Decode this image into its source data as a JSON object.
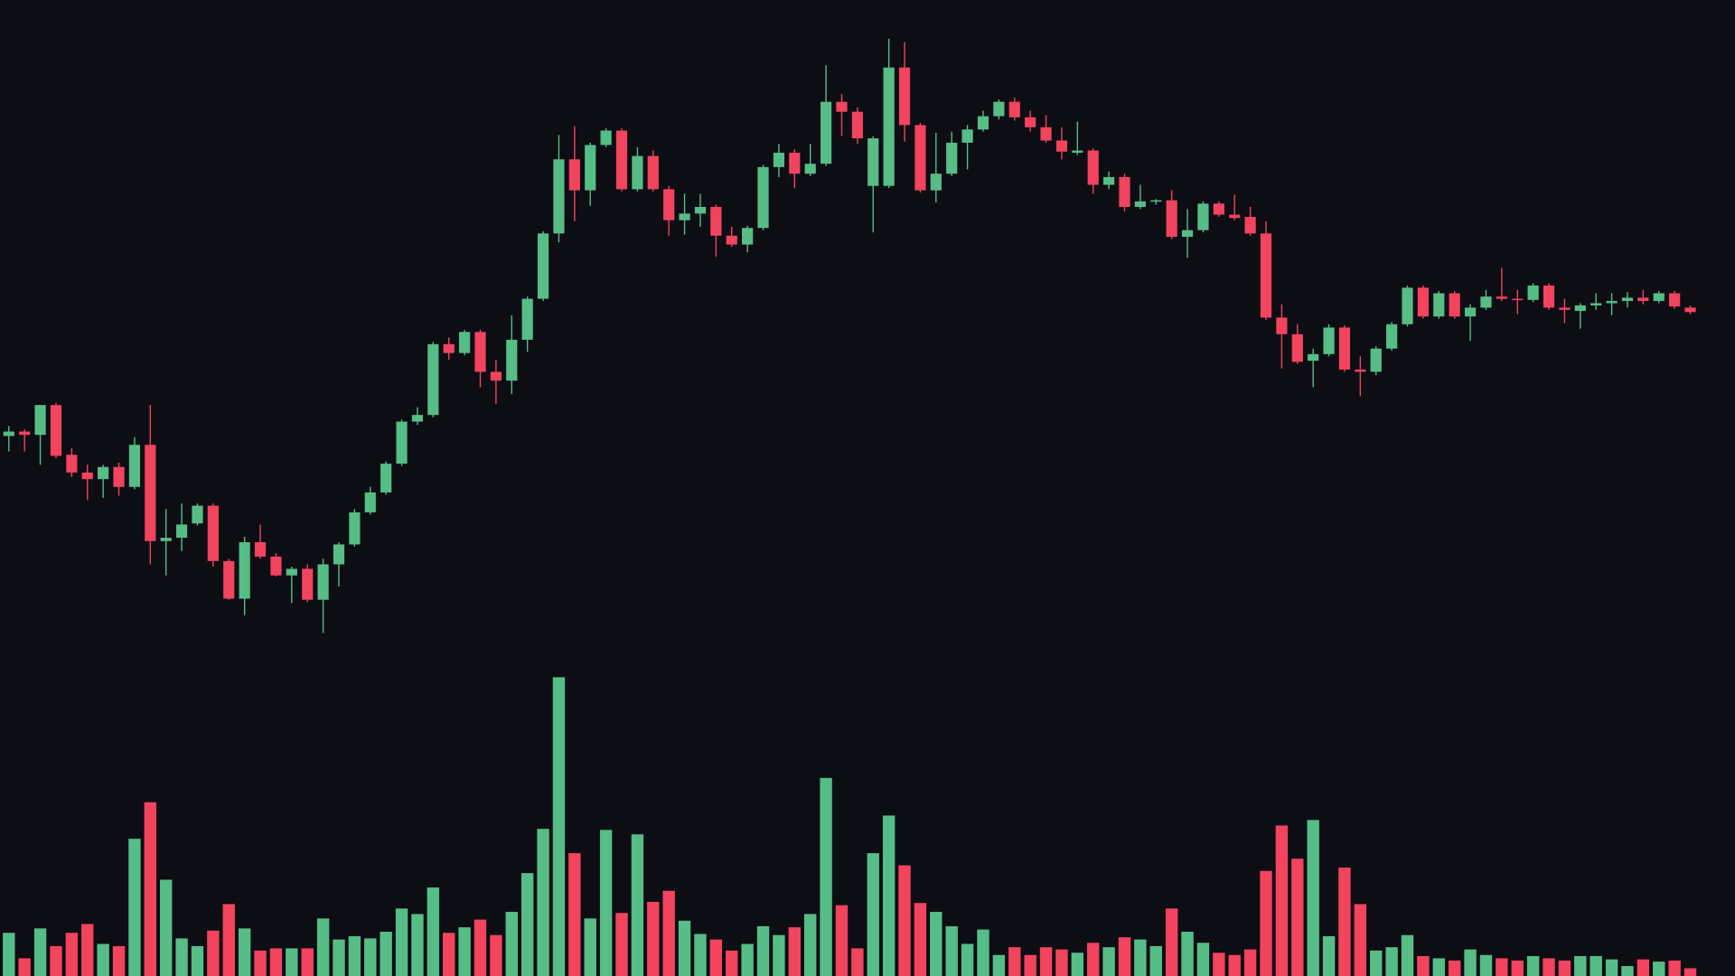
{
  "chart_data": {
    "type": "candlestick",
    "up_color": "#56bd86",
    "down_color": "#f2435f",
    "background": "#0d0d14",
    "ylim": [
      0,
      882
    ],
    "y2lim": [
      0,
      882
    ],
    "open": [
      488,
      492,
      489,
      516,
      471,
      455,
      449,
      460,
      442,
      480,
      393,
      396,
      409,
      425,
      375,
      341,
      392,
      379,
      362,
      368,
      340,
      372,
      390,
      419,
      437,
      463,
      501,
      507,
      571,
      563,
      582,
      546,
      538,
      575,
      612,
      671,
      738,
      710,
      751,
      764,
      711,
      741,
      711,
      683,
      689,
      695,
      669,
      661,
      676,
      731,
      744,
      725,
      734,
      790,
      781,
      714,
      714,
      821,
      769,
      710,
      725,
      753,
      765,
      777,
      790,
      776,
      767,
      755,
      744,
      746,
      715,
      722,
      695,
      700,
      701,
      668,
      674,
      698,
      688,
      686,
      671,
      595,
      580,
      556,
      562,
      586,
      548,
      546,
      567,
      589,
      622,
      596,
      617,
      596,
      604,
      614,
      612,
      611,
      624,
      604,
      601,
      606,
      608,
      610,
      613,
      610,
      617,
      604
    ],
    "high": [
      497,
      494,
      516,
      518,
      477,
      462,
      462,
      464,
      487,
      516,
      422,
      427,
      427,
      427,
      377,
      397,
      408,
      382,
      370,
      372,
      377,
      392,
      422,
      442,
      465,
      503,
      514,
      573,
      577,
      584,
      584,
      557,
      597,
      614,
      673,
      760,
      768,
      753,
      766,
      766,
      749,
      746,
      714,
      707,
      707,
      697,
      677,
      678,
      733,
      752,
      747,
      752,
      823,
      797,
      785,
      759,
      847,
      844,
      771,
      762,
      763,
      769,
      782,
      792,
      794,
      782,
      778,
      767,
      772,
      748,
      727,
      725,
      715,
      702,
      710,
      693,
      700,
      700,
      706,
      695,
      682,
      607,
      589,
      567,
      589,
      588,
      560,
      569,
      591,
      624,
      624,
      619,
      619,
      607,
      620,
      640,
      620,
      626,
      626,
      612,
      608,
      617,
      617,
      618,
      620,
      619,
      619,
      606
    ],
    "low": [
      474,
      474,
      462,
      468,
      451,
      430,
      432,
      434,
      440,
      372,
      362,
      384,
      407,
      370,
      340,
      326,
      377,
      361,
      337,
      338,
      310,
      352,
      388,
      417,
      435,
      461,
      498,
      505,
      557,
      561,
      532,
      517,
      526,
      564,
      610,
      663,
      682,
      696,
      749,
      709,
      709,
      709,
      669,
      670,
      677,
      650,
      659,
      654,
      674,
      722,
      712,
      723,
      732,
      759,
      752,
      672,
      712,
      754,
      708,
      699,
      723,
      729,
      763,
      774,
      773,
      763,
      753,
      738,
      742,
      707,
      711,
      691,
      693,
      697,
      666,
      649,
      672,
      686,
      683,
      669,
      593,
      549,
      553,
      532,
      560,
      546,
      524,
      543,
      565,
      587,
      594,
      594,
      594,
      574,
      602,
      610,
      598,
      609,
      602,
      590,
      585,
      602,
      597,
      604,
      607,
      608,
      603,
      598
    ],
    "close": [
      492,
      489,
      516,
      470,
      455,
      449,
      460,
      442,
      480,
      393,
      396,
      408,
      425,
      375,
      341,
      392,
      379,
      362,
      368,
      340,
      372,
      390,
      419,
      437,
      463,
      501,
      507,
      571,
      563,
      582,
      546,
      538,
      575,
      612,
      671,
      738,
      710,
      751,
      764,
      711,
      741,
      711,
      683,
      689,
      695,
      669,
      661,
      676,
      731,
      744,
      725,
      734,
      790,
      781,
      757,
      757,
      821,
      769,
      710,
      725,
      753,
      765,
      777,
      790,
      776,
      767,
      755,
      745,
      746,
      715,
      722,
      695,
      700,
      701,
      668,
      674,
      698,
      688,
      685,
      671,
      595,
      580,
      555,
      562,
      586,
      548,
      546,
      567,
      589,
      622,
      596,
      617,
      596,
      604,
      614,
      612,
      611,
      624,
      604,
      602,
      606,
      608,
      610,
      613,
      610,
      617,
      605,
      600
    ],
    "volume": [
      39,
      16,
      43,
      27,
      39,
      47,
      29,
      27,
      124,
      157,
      87,
      34,
      27,
      41,
      65,
      43,
      23,
      25,
      25,
      25,
      52,
      33,
      36,
      34,
      40,
      61,
      56,
      80,
      39,
      44,
      51,
      37,
      58,
      93,
      133,
      270,
      111,
      52,
      132,
      57,
      128,
      67,
      77,
      50,
      38,
      33,
      23,
      29,
      45,
      37,
      44,
      56,
      179,
      64,
      25,
      111,
      145,
      100,
      66,
      58,
      45,
      29,
      42,
      19,
      26,
      19,
      26,
      24,
      21,
      30,
      26,
      35,
      33,
      27,
      61,
      40,
      30,
      21,
      19,
      24,
      95,
      136,
      106,
      141,
      36,
      98,
      65,
      23,
      26,
      37,
      18,
      16,
      14,
      24,
      19,
      16,
      14,
      18,
      16,
      14,
      18,
      18,
      15,
      9,
      15,
      13,
      14,
      7
    ]
  }
}
